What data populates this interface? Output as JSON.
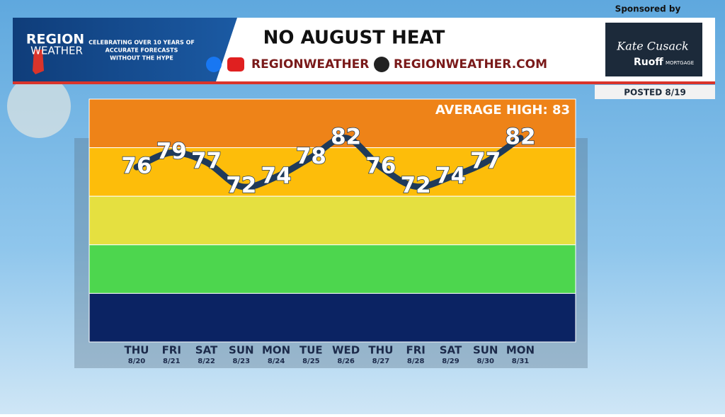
{
  "header": {
    "logo_top": "REGION",
    "logo_bottom": "WEATHER",
    "tagline": [
      "CELEBRATING OVER 10 YEARS OF",
      "ACCURATE FORECASTS",
      "WITHOUT THE HYPE"
    ],
    "social": "REGIONWEATHER",
    "website": "REGIONWEATHER.COM",
    "sponsored": "Sponsored by",
    "sponsor_name": "Kate Cusack",
    "sponsor_brand": "Ruoff",
    "sponsor_sub": "MORTGAGE",
    "posted": "POSTED 8/19"
  },
  "chart_data": {
    "type": "line",
    "title": "NO AUGUST HEAT",
    "annotation": "AVERAGE HIGH: 83",
    "categories": [
      "THU",
      "FRI",
      "SAT",
      "SUN",
      "MON",
      "TUE",
      "WED",
      "THU",
      "FRI",
      "SAT",
      "SUN",
      "MON"
    ],
    "dates": [
      "8/20",
      "8/21",
      "8/22",
      "8/23",
      "8/24",
      "8/25",
      "8/26",
      "8/27",
      "8/28",
      "8/29",
      "8/30",
      "8/31"
    ],
    "values": [
      76,
      79,
      77,
      72,
      74,
      78,
      82,
      76,
      72,
      74,
      77,
      82
    ],
    "color": "#1f3a5a",
    "ylim": [
      40,
      90
    ],
    "bands": [
      {
        "from": 80,
        "to": 90,
        "color": "#ee8318"
      },
      {
        "from": 70,
        "to": 80,
        "color": "#fdbd0a"
      },
      {
        "from": 60,
        "to": 70,
        "color": "#e5e040"
      },
      {
        "from": 50,
        "to": 60,
        "color": "#4dd64e"
      },
      {
        "from": 40,
        "to": 50,
        "color": "#0b2363"
      }
    ]
  }
}
